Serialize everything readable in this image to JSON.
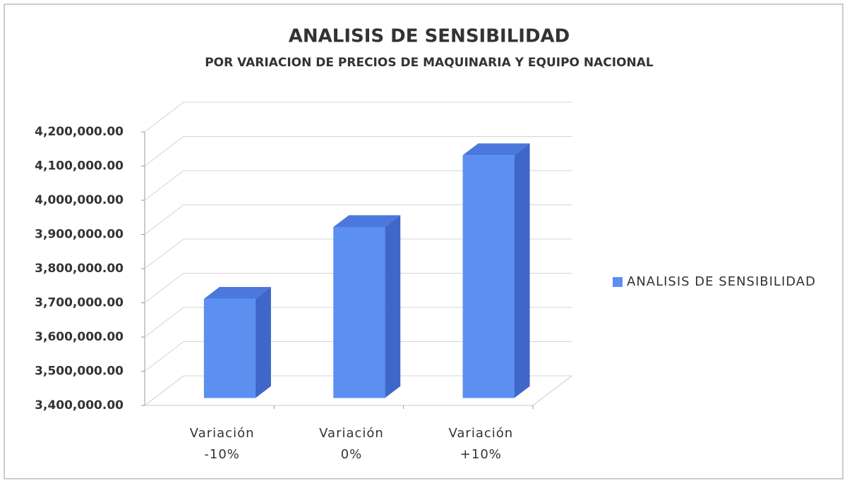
{
  "chart_data": {
    "type": "bar3d",
    "title": "ANALISIS DE SENSIBILIDAD",
    "subtitle": "POR VARIACION DE PRECIOS DE MAQUINARIA Y EQUIPO NACIONAL",
    "categories": [
      "Variación -10%",
      "Variación 0%",
      "Variación +10%"
    ],
    "series": [
      {
        "name": "ANALISIS DE SENSIBILIDAD",
        "color": "#5b8ff0",
        "values": [
          3690000,
          3900000,
          4110000
        ]
      }
    ],
    "ylim": [
      3400000,
      4200000
    ],
    "yticks": [
      {
        "value": 3400000,
        "label": "3,400,000.00"
      },
      {
        "value": 3500000,
        "label": "3,500,000.00"
      },
      {
        "value": 3600000,
        "label": "3,600,000.00"
      },
      {
        "value": 3700000,
        "label": "3,700,000.00"
      },
      {
        "value": 3800000,
        "label": "3,800,000.00"
      },
      {
        "value": 3900000,
        "label": "3,900,000.00"
      },
      {
        "value": 4000000,
        "label": "4,000,000.00"
      },
      {
        "value": 4100000,
        "label": "4,100,000.00"
      },
      {
        "value": 4200000,
        "label": "4,200,000.00"
      }
    ],
    "grid": true,
    "legend": "right"
  }
}
